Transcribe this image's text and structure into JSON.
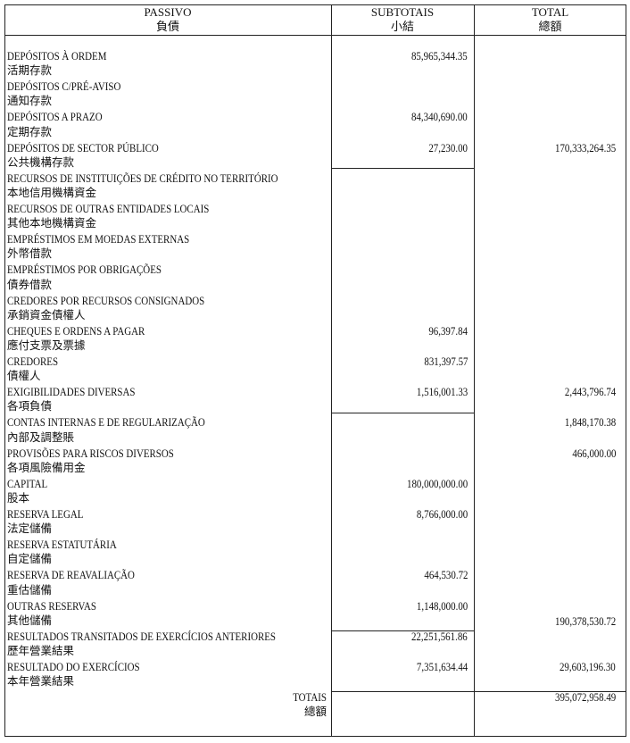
{
  "header": {
    "passivo": "PASSIVO",
    "passivo_zh": "負債",
    "subtotais": "SUBTOTAIS",
    "subtotais_zh": "小結",
    "total": "TOTAL",
    "total_zh": "總額"
  },
  "rows": [
    {
      "pt": "DEPÓSITOS À ORDEM",
      "zh": "活期存款",
      "subtotal": "85,965,344.35",
      "total": ""
    },
    {
      "pt": "DEPÓSITOS C/PRÉ-AVISO",
      "zh": "通知存款",
      "subtotal": "",
      "total": ""
    },
    {
      "pt": "DEPÓSITOS A PRAZO",
      "zh": "定期存款",
      "subtotal": "84,340,690.00",
      "total": ""
    },
    {
      "pt": "DEPÓSITOS DE SECTOR PÚBLICO",
      "zh": "公共機構存款",
      "subtotal": "27,230.00",
      "total": "170,333,264.35"
    },
    {
      "pt": "RECURSOS DE INSTITUIÇÕES DE CRÉDITO NO TERRITÓRIO",
      "zh": "本地信用機構資金",
      "subtotal": "",
      "total": ""
    },
    {
      "pt": "RECURSOS DE OUTRAS ENTIDADES LOCAIS",
      "zh": "其他本地機構資金",
      "subtotal": "",
      "total": ""
    },
    {
      "pt": "EMPRÉSTIMOS EM MOEDAS EXTERNAS",
      "zh": "外幣借款",
      "subtotal": "",
      "total": ""
    },
    {
      "pt": "EMPRÉSTIMOS POR OBRIGAÇÕES",
      "zh": "債券借款",
      "subtotal": "",
      "total": ""
    },
    {
      "pt": "CREDORES POR RECURSOS CONSIGNADOS",
      "zh": "承銷資金債權人",
      "subtotal": "",
      "total": ""
    },
    {
      "pt": "CHEQUES E ORDENS A PAGAR",
      "zh": "應付支票及票據",
      "subtotal": "96,397.84",
      "total": ""
    },
    {
      "pt": "CREDORES",
      "zh": "債權人",
      "subtotal": "831,397.57",
      "total": ""
    },
    {
      "pt": "EXIGIBILIDADES DIVERSAS",
      "zh": "各項負債",
      "subtotal": "1,516,001.33",
      "total": "2,443,796.74"
    },
    {
      "pt": "CONTAS INTERNAS E DE REGULARIZAÇÃO",
      "zh": "內部及調整賬",
      "subtotal": "",
      "total": "1,848,170.38"
    },
    {
      "pt": "PROVISÕES PARA RISCOS DIVERSOS",
      "zh": "各項風險備用金",
      "subtotal": "",
      "total": "466,000.00"
    },
    {
      "pt": "CAPITAL",
      "zh": "股本",
      "subtotal": "180,000,000.00",
      "total": ""
    },
    {
      "pt": "RESERVA LEGAL",
      "zh": "法定儲備",
      "subtotal": "8,766,000.00",
      "total": ""
    },
    {
      "pt": "RESERVA ESTATUTÁRIA",
      "zh": "自定儲備",
      "subtotal": "",
      "total": ""
    },
    {
      "pt": "RESERVA DE REAVALIAÇÃO",
      "zh": "重估儲備",
      "subtotal": "464,530.72",
      "total": ""
    },
    {
      "pt": "OUTRAS RESERVAS",
      "zh": "其他儲備",
      "subtotal": "1,148,000.00",
      "total": "",
      "total_zh_line": "190,378,530.72"
    },
    {
      "pt": "RESULTADOS TRANSITADOS DE EXERCÍCIOS ANTERIORES",
      "zh": "歷年營業結果",
      "subtotal": "22,251,561.86",
      "total": ""
    },
    {
      "pt": "RESULTADO DO EXERCÍCIOS",
      "zh": "本年營業結果",
      "subtotal": "7,351,634.44",
      "total": "29,603,196.30"
    }
  ],
  "totals": {
    "label": "TOTAIS",
    "label_zh": "總額",
    "value": "395,072,958.49"
  }
}
